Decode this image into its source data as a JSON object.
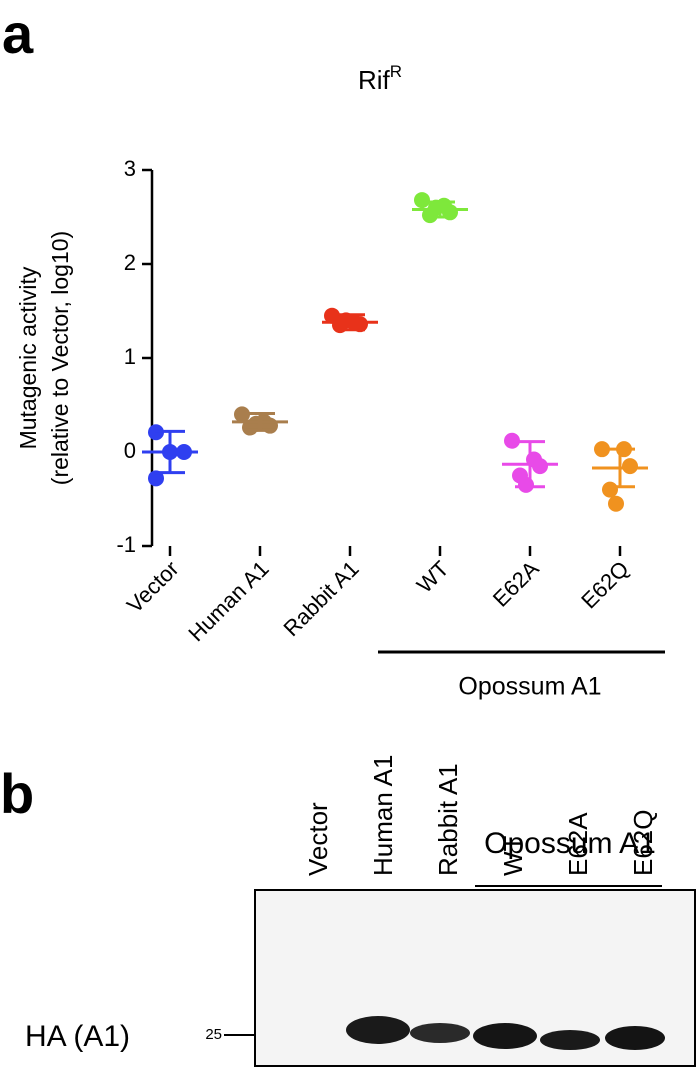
{
  "panel_a": {
    "label": "a"
  },
  "chart_data": {
    "type": "dotplot",
    "title": "Rif",
    "title_superscript": "R",
    "y_label": [
      "Mutagenic activity",
      "(relative to Vector, log10)"
    ],
    "categories": [
      "Vector",
      "Human A1",
      "Rabbit A1",
      "WT",
      "E62A",
      "E62Q"
    ],
    "colors": [
      "#2f3ff0",
      "#a97e4d",
      "#e8321a",
      "#7ee83b",
      "#e84ae8",
      "#f0921f"
    ],
    "points": [
      [
        0.21,
        0,
        0,
        -0.28
      ],
      [
        0.4,
        0.32,
        0.28,
        0.26,
        0.3
      ],
      [
        1.45,
        1.38,
        1.36,
        1.35,
        1.4
      ],
      [
        2.68,
        2.62,
        2.55,
        2.52,
        2.6
      ],
      [
        0.12,
        -0.08,
        -0.15,
        -0.25,
        -0.35
      ],
      [
        0.03,
        0.03,
        -0.15,
        -0.4,
        -0.55
      ]
    ],
    "means": [
      0,
      0.32,
      1.38,
      2.58,
      -0.13,
      -0.17
    ],
    "sds": [
      0.22,
      0.09,
      0.08,
      0.08,
      0.24,
      0.2
    ],
    "ylim": [
      -1,
      3
    ],
    "yticks": [
      -1,
      0,
      1,
      2,
      3
    ],
    "group": {
      "label": "Opossum A1",
      "from": 3,
      "to": 5
    }
  },
  "panel_b": {
    "label": "b",
    "group_label": "Opossum A1",
    "lanes": [
      "Vector",
      "Human A1",
      "Rabbit A1",
      "WT",
      "E62A",
      "E62Q"
    ],
    "row_label": "HA (A1)",
    "marker": "25"
  }
}
